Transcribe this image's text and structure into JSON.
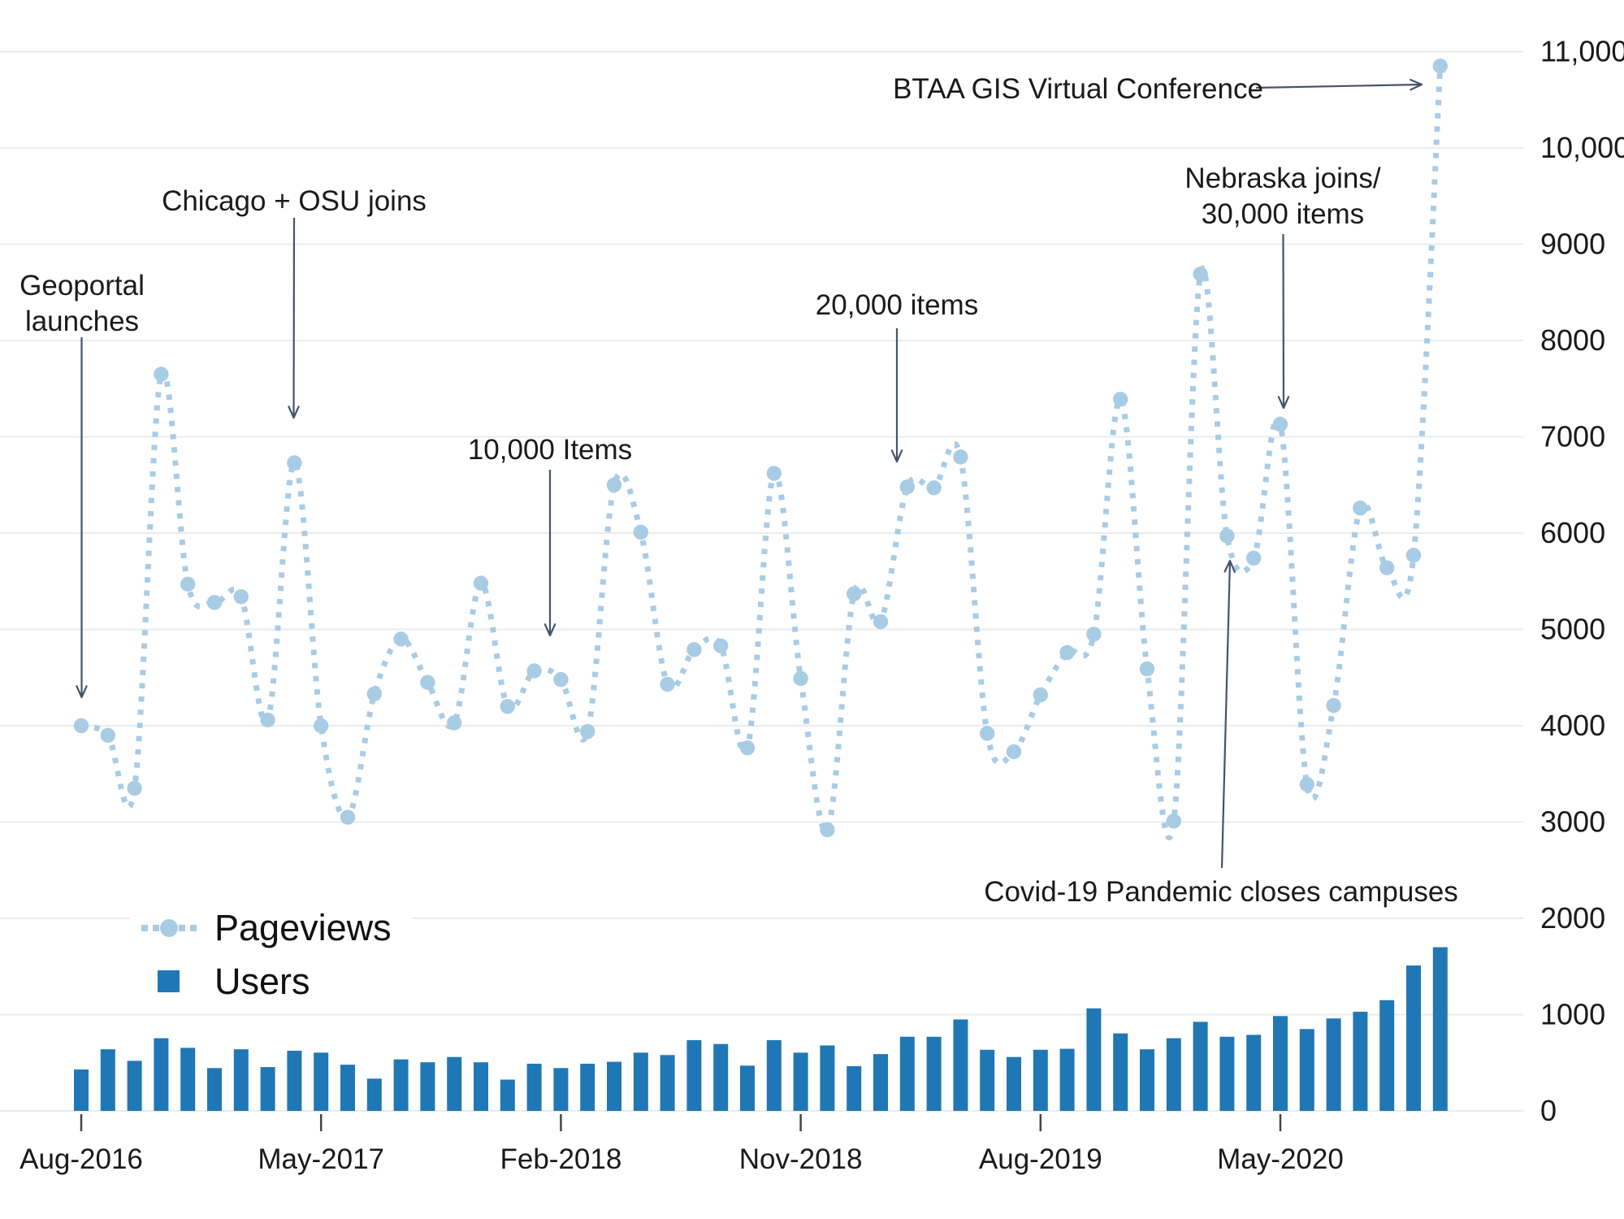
{
  "chart_data": {
    "type": "combo",
    "categories": [
      "Aug-2016",
      "Sep-2016",
      "Oct-2016",
      "Nov-2016",
      "Dec-2016",
      "Jan-2017",
      "Feb-2017",
      "Mar-2017",
      "Apr-2017",
      "May-2017",
      "Jun-2017",
      "Jul-2017",
      "Aug-2017",
      "Sep-2017",
      "Oct-2017",
      "Nov-2017",
      "Dec-2017",
      "Jan-2018",
      "Feb-2018",
      "Mar-2018",
      "Apr-2018",
      "May-2018",
      "Jun-2018",
      "Jul-2018",
      "Aug-2018",
      "Sep-2018",
      "Oct-2018",
      "Nov-2018",
      "Dec-2018",
      "Jan-2019",
      "Feb-2019",
      "Mar-2019",
      "Apr-2019",
      "May-2019",
      "Jun-2019",
      "Jul-2019",
      "Aug-2019",
      "Sep-2019",
      "Oct-2019",
      "Nov-2019",
      "Dec-2019",
      "Jan-2020",
      "Feb-2020",
      "Mar-2020",
      "Apr-2020",
      "May-2020",
      "Jun-2020",
      "Jul-2020",
      "Aug-2020",
      "Sep-2020",
      "Oct-2020",
      "Nov-2020"
    ],
    "series": [
      {
        "name": "Pageviews",
        "type": "line",
        "style": "dotted-with-markers",
        "color": "#a9cce5",
        "values": [
          4000,
          3900,
          3350,
          7650,
          5470,
          5280,
          5340,
          4060,
          6730,
          4000,
          3050,
          4330,
          4900,
          4450,
          4030,
          5480,
          4200,
          4570,
          4480,
          3940,
          6500,
          6010,
          4430,
          4790,
          4830,
          3770,
          6620,
          4490,
          2920,
          5370,
          5080,
          6480,
          6470,
          6790,
          3920,
          3730,
          4320,
          4760,
          4950,
          7390,
          4590,
          3010,
          8690,
          5970,
          5740,
          7130,
          3390,
          4210,
          6260,
          5640,
          5770,
          10850
        ]
      },
      {
        "name": "Users",
        "type": "bar",
        "color": "#2077b5",
        "values": [
          430,
          640,
          520,
          755,
          655,
          445,
          640,
          455,
          625,
          605,
          480,
          335,
          535,
          505,
          560,
          505,
          325,
          490,
          445,
          490,
          510,
          605,
          580,
          735,
          695,
          470,
          735,
          605,
          680,
          465,
          590,
          770,
          770,
          950,
          635,
          560,
          635,
          645,
          1065,
          805,
          640,
          755,
          925,
          770,
          790,
          985,
          850,
          960,
          1030,
          1150,
          1510,
          1700
        ]
      }
    ],
    "y_axis": {
      "min": 0,
      "max": 11000,
      "ticks": [
        {
          "value": 0,
          "label": "0"
        },
        {
          "value": 1000,
          "label": "1000"
        },
        {
          "value": 2000,
          "label": "2000"
        },
        {
          "value": 3000,
          "label": "3000"
        },
        {
          "value": 4000,
          "label": "4000"
        },
        {
          "value": 5000,
          "label": "5000"
        },
        {
          "value": 6000,
          "label": "6000"
        },
        {
          "value": 7000,
          "label": "7000"
        },
        {
          "value": 8000,
          "label": "8000"
        },
        {
          "value": 9000,
          "label": "9000"
        },
        {
          "value": 10000,
          "label": "10,000"
        },
        {
          "value": 11000,
          "label": "11,000"
        }
      ]
    },
    "x_axis": {
      "ticks": [
        {
          "index": 0,
          "label": "Aug-2016"
        },
        {
          "index": 9,
          "label": "May-2017"
        },
        {
          "index": 18,
          "label": "Feb-2018"
        },
        {
          "index": 27,
          "label": "Nov-2018"
        },
        {
          "index": 36,
          "label": "Aug-2019"
        },
        {
          "index": 45,
          "label": "May-2020"
        }
      ]
    },
    "legend": {
      "position": "bottom-left",
      "items": [
        "Pageviews",
        "Users"
      ]
    },
    "annotations": [
      {
        "id": "geoportal",
        "lines": [
          "Geoportal",
          "launches"
        ],
        "target": {
          "month": "Aug-2016",
          "series": "Pageviews",
          "value": 4000
        }
      },
      {
        "id": "chicago",
        "lines": [
          "Chicago + OSU joins"
        ],
        "target": {
          "month": "Apr-2017",
          "series": "Pageviews",
          "value": 6730
        }
      },
      {
        "id": "items10k",
        "lines": [
          "10,000 Items"
        ],
        "target": {
          "month": "Feb-2018",
          "series": "Pageviews",
          "value": 4480
        }
      },
      {
        "id": "items20k",
        "lines": [
          "20,000 items"
        ],
        "target": {
          "month": "Mar-2019",
          "series": "Pageviews",
          "value": 6480
        }
      },
      {
        "id": "btaa",
        "lines": [
          "BTAA GIS Virtual Conference"
        ],
        "target": {
          "month": "Nov-2020",
          "series": "Pageviews",
          "value": 10850
        }
      },
      {
        "id": "nebraska",
        "lines": [
          "Nebraska joins/",
          "30,000 items"
        ],
        "target": {
          "month": "May-2020",
          "series": "Pageviews",
          "value": 7130
        }
      },
      {
        "id": "covid",
        "lines": [
          "Covid-19 Pandemic closes campuses"
        ],
        "target": {
          "month": "Mar-2020",
          "series": "Pageviews",
          "value": 5970
        }
      }
    ],
    "colors": {
      "annotation_arrow": "#44546a",
      "grid": "#eaecee",
      "axis_text": "#1a1a1a",
      "tick_mark": "#444444"
    },
    "grid": "horizontal-only"
  }
}
